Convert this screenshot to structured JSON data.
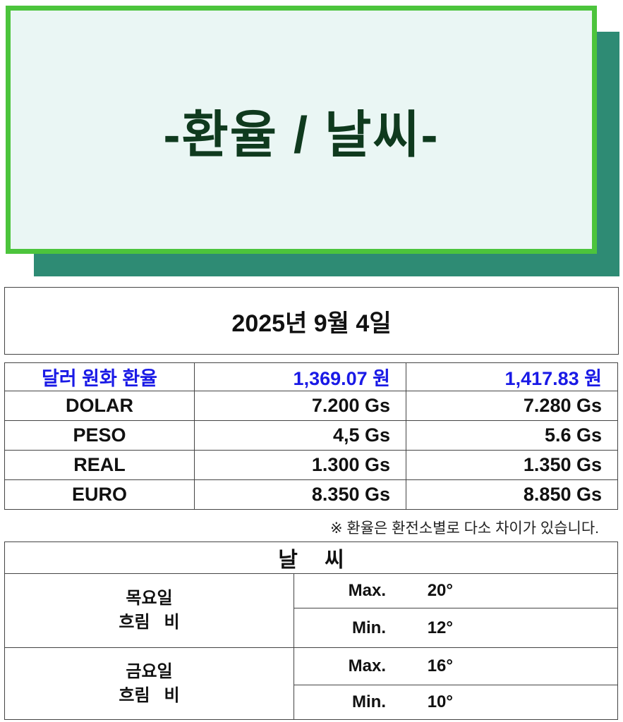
{
  "banner": {
    "title": "-환율 / 날씨-",
    "colors": {
      "border": "#4cc43c",
      "fill": "#eaf6f4",
      "shadow": "#2e8b74",
      "text": "#0f3a1e"
    }
  },
  "date": "2025년 9월 4일",
  "rates": {
    "header": {
      "label": "달러 원화 환율",
      "buy": "1,369.07 원",
      "sell": "1,417.83 원",
      "color": "#1a1ae6"
    },
    "rows": [
      {
        "name": "DOLAR",
        "buy": "7.200 Gs",
        "sell": "7.280 Gs"
      },
      {
        "name": "PESO",
        "buy": "4,5 Gs",
        "sell": "5.6 Gs"
      },
      {
        "name": "REAL",
        "buy": "1.300 Gs",
        "sell": "1.350 Gs"
      },
      {
        "name": "EURO",
        "buy": "8.350 Gs",
        "sell": "8.850 Gs"
      }
    ],
    "note": "※ 환율은 환전소별로 다소 차이가 있습니다."
  },
  "weather": {
    "title": "날 씨",
    "days": [
      {
        "day": "목요일",
        "condition": "흐림   비",
        "max_label": "Max.",
        "max": "20°",
        "min_label": "Min.",
        "min": "12°"
      },
      {
        "day": "금요일",
        "condition": "흐림   비",
        "max_label": "Max.",
        "max": "16°",
        "min_label": "Min.",
        "min": "10°"
      }
    ]
  }
}
